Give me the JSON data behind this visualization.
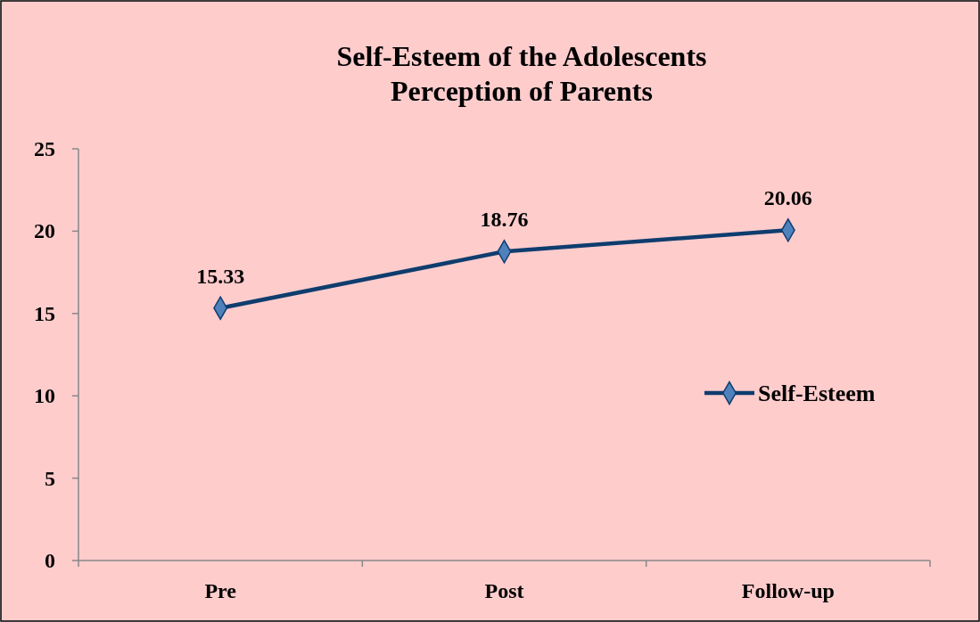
{
  "chart_data": {
    "type": "line",
    "title": "Self-Esteem of the Adolescents\nPerception of Parents",
    "categories": [
      "Pre",
      "Post",
      "Follow-up"
    ],
    "series": [
      {
        "name": "Self-Esteem",
        "color": "#0e3d6e",
        "values": [
          15.33,
          18.76,
          20.06
        ]
      }
    ],
    "ylim": [
      0,
      25
    ],
    "yticks": [
      0,
      5,
      10,
      15,
      20,
      25
    ],
    "grid": false,
    "legend": "right",
    "marker": "diamond",
    "line_style": "solid",
    "data_labels": true
  }
}
